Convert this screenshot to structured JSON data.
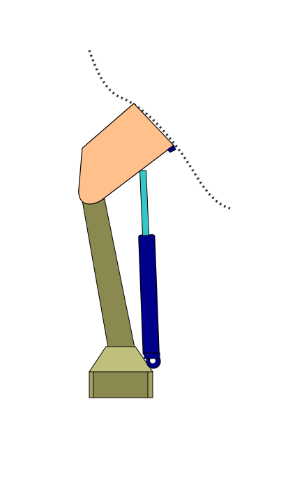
{
  "diagram": {
    "background": "#ffffff",
    "colors": {
      "upper_body": "#ffc08b",
      "column": "#8a8a50",
      "base_top": "#c0c07c",
      "base_front": "#8a8a50",
      "base_side": "#a2a264",
      "rod": "#35c7c7",
      "cylinder": "#00008b",
      "outline": "#000000",
      "dotted_path": "#333333"
    }
  }
}
